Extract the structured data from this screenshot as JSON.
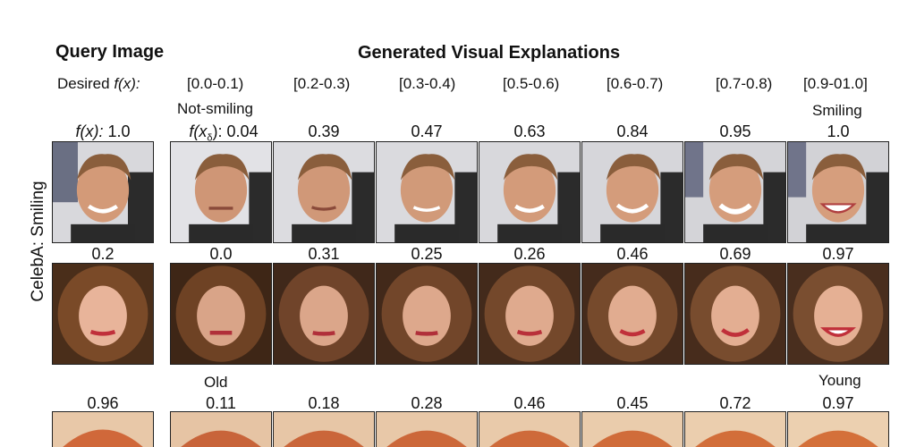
{
  "headers": {
    "query": "Query Image",
    "generated": "Generated Visual Explanations",
    "desired_prefix": "Desired ",
    "desired_fx": "f(x):"
  },
  "ranges": [
    "[0.0-0.1)",
    "[0.2-0.3)",
    "[0.3-0.4)",
    "[0.5-0.6)",
    "[0.6-0.7)",
    "[0.7-0.8)",
    "[0.9-01.0]"
  ],
  "side_label": "CelebA: Smiling",
  "rows": [
    {
      "query_prefix": "f(x): ",
      "query_value": "1.0",
      "delta_prefix": "f(x",
      "delta_sub": "δ",
      "delta_suffix": "): 0.04",
      "values": [
        "0.39",
        "0.47",
        "0.63",
        "0.84",
        "0.95",
        "1.0"
      ],
      "label_left": "Not-smiling",
      "label_right": "Smiling",
      "style": "man"
    },
    {
      "query_value": "0.2",
      "values": [
        "0.0",
        "0.31",
        "0.25",
        "0.26",
        "0.46",
        "0.69",
        "0.97"
      ],
      "style": "woman"
    },
    {
      "query_value": "0.96",
      "values": [
        "0.11",
        "0.18",
        "0.28",
        "0.46",
        "0.45",
        "0.72",
        "0.97"
      ],
      "label_left": "Old",
      "label_right": "Young",
      "style": "redhead"
    }
  ]
}
